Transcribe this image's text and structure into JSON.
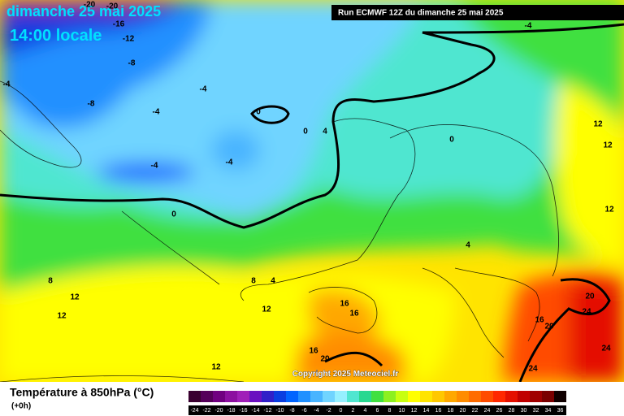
{
  "header": {
    "title": "dimanche 25 mai 2025",
    "time": "14:00 locale",
    "run": "Run ECMWF 12Z du dimanche 25 mai 2025",
    "copyright": "Copyright 2025 Meteociel.fr"
  },
  "legend": {
    "title": "Température à 850hPa (°C)",
    "step": "(+0h)",
    "ticks": [
      -24,
      -22,
      -20,
      -18,
      -16,
      -14,
      -12,
      -10,
      -8,
      -6,
      -4,
      -2,
      0,
      2,
      4,
      6,
      8,
      10,
      12,
      14,
      16,
      18,
      20,
      22,
      24,
      26,
      28,
      30,
      32,
      34,
      36
    ],
    "colors": [
      "#3a0030",
      "#55005a",
      "#700080",
      "#8c10a0",
      "#a020b8",
      "#6a10c0",
      "#3020c8",
      "#0a3ee0",
      "#0064ff",
      "#2090ff",
      "#48b4ff",
      "#70d4ff",
      "#96f0ff",
      "#50e6d0",
      "#28d890",
      "#40e040",
      "#8cf020",
      "#c8ff10",
      "#ffff00",
      "#ffe400",
      "#ffc800",
      "#ffa800",
      "#ff8c00",
      "#ff6c00",
      "#ff4c00",
      "#ff2800",
      "#e41000",
      "#c00000",
      "#a00000",
      "#7a0000",
      "#100000"
    ]
  },
  "map_labels": [
    -20,
    -20,
    -16,
    -12,
    -8,
    -8,
    -4,
    -4,
    -4,
    -4,
    -4,
    0,
    0,
    4,
    0,
    0,
    12,
    12,
    12,
    4,
    8,
    4,
    8,
    12,
    12,
    12,
    16,
    16,
    16,
    20,
    12,
    20,
    24,
    16,
    20,
    24,
    24,
    -4
  ]
}
